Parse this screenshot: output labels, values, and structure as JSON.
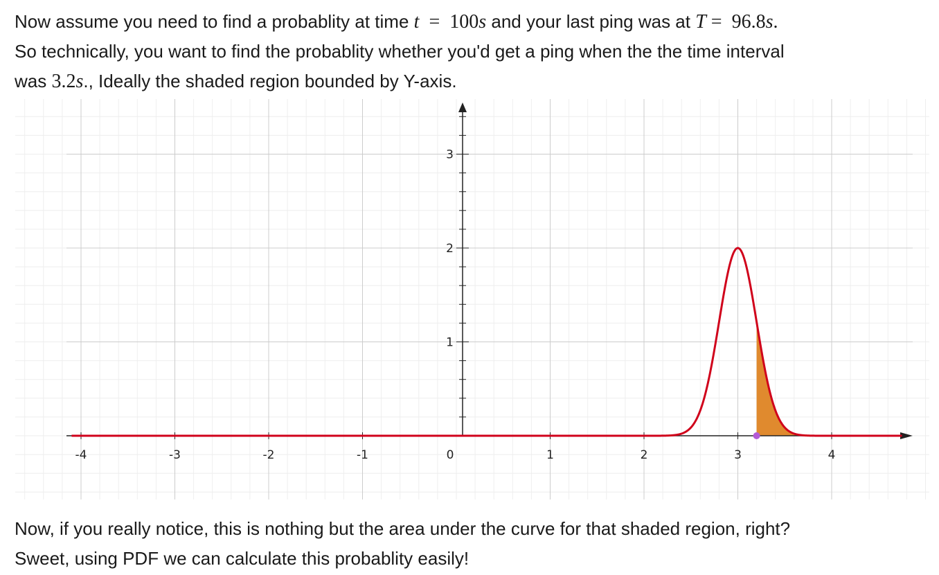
{
  "intro": {
    "line1_a": "Now assume you need to find a probablity at time ",
    "t_var": "t",
    "eq1": "=",
    "t_val": "100",
    "t_unit": "s",
    "line1_b": " and your last ping was at ",
    "T_var": "T",
    "eq2": "=",
    "T_val": "96.8",
    "T_unit": "s",
    "T_dot": ".",
    "line2": "So technically, you want to find the probablity whether you'd get a ping when the the time interval",
    "line3_a": "was ",
    "interval_val": "3.2",
    "interval_unit": "s",
    "line3_b": "., Ideally the shaded region bounded by Y-axis."
  },
  "outro": {
    "line1": "Now, if you really notice, this is nothing but the area under the curve for that shaded region, right?",
    "line2": "Sweet, using PDF we can calculate this probablity easily!"
  },
  "chart_data": {
    "type": "line",
    "xlim": [
      -4.1,
      4.9
    ],
    "ylim": [
      -0.45,
      3.55
    ],
    "x_ticks": [
      "-4",
      "-3",
      "-2",
      "-1",
      "0",
      "1",
      "2",
      "3",
      "4"
    ],
    "y_ticks": [
      "1",
      "2",
      "3"
    ],
    "curve": {
      "kind": "normal",
      "mean": 3,
      "sd": 0.2,
      "peak": 2.0,
      "color": "#d0021b"
    },
    "shaded_region": {
      "from": 3.2,
      "to": 4.9,
      "color": "#e08a2e"
    },
    "point": {
      "x": 3.2,
      "y": 0,
      "color": "#b35ad6"
    },
    "grid": true
  }
}
